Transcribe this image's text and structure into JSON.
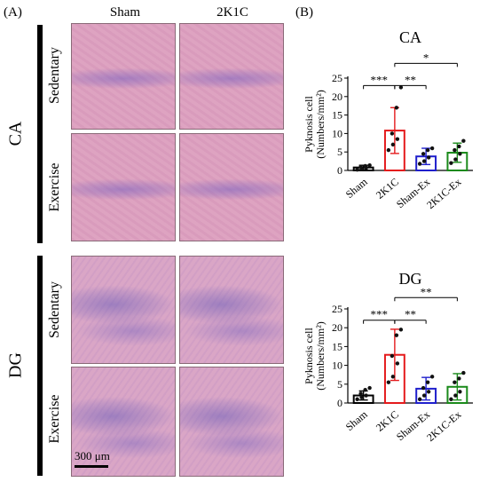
{
  "panel_a": {
    "label": "(A)",
    "columns": [
      "Sham",
      "2K1C"
    ],
    "regions": [
      "CA",
      "DG"
    ],
    "rows": [
      "Sedentary",
      "Exercise"
    ],
    "scale_bar": "300 μm"
  },
  "panel_b_label": "(B)",
  "chart_data": [
    {
      "type": "bar",
      "title": "CA",
      "ylabel": "Pyknosis cell (Numbers/mm²)",
      "ylabel_lines": [
        "Pyknosis cell",
        "(Numbers/mm²)"
      ],
      "categories": [
        "Sham",
        "2K1C",
        "Sham-Ex",
        "2K1C-Ex"
      ],
      "values": [
        0.8,
        10.8,
        3.8,
        4.8
      ],
      "errors": [
        0.6,
        6.2,
        2.2,
        2.6
      ],
      "colors": [
        "#000000",
        "#e41a1c",
        "#1f1fcc",
        "#1a8a1a"
      ],
      "points": [
        [
          0.2,
          0.4,
          0.8,
          1.0,
          1.2,
          1.4
        ],
        [
          5.5,
          7.0,
          8.5,
          10.0,
          17.0,
          22.5
        ],
        [
          1.8,
          2.5,
          3.5,
          4.5,
          5.5,
          6.0
        ],
        [
          2.0,
          3.0,
          4.5,
          5.5,
          6.5,
          8.0
        ]
      ],
      "ylim": [
        0,
        25
      ],
      "yticks": [
        0,
        5,
        10,
        15,
        20,
        25
      ],
      "significance": [
        {
          "from": 0,
          "to": 1,
          "label": "***",
          "y": 23
        },
        {
          "from": 1,
          "to": 2,
          "label": "**",
          "y": 23
        },
        {
          "from": 1,
          "to": 3,
          "label": "*",
          "y": 29
        }
      ]
    },
    {
      "type": "bar",
      "title": "DG",
      "ylabel": "Pyknosis cell (Numbers/mm²)",
      "ylabel_lines": [
        "Pyknosis cell",
        "(Numbers/mm²)"
      ],
      "categories": [
        "Sham",
        "2K1C",
        "Sham-Ex",
        "2K1C-Ex"
      ],
      "values": [
        2.0,
        12.8,
        3.8,
        4.3
      ],
      "errors": [
        1.2,
        6.8,
        3.0,
        3.5
      ],
      "colors": [
        "#000000",
        "#e41a1c",
        "#1f1fcc",
        "#1a8a1a"
      ],
      "points": [
        [
          1.0,
          1.5,
          2.0,
          2.5,
          3.5,
          4.0
        ],
        [
          5.5,
          7.0,
          10.5,
          12.5,
          18.0,
          19.5
        ],
        [
          1.0,
          2.0,
          3.0,
          4.0,
          5.5,
          7.0
        ],
        [
          1.0,
          2.0,
          3.0,
          5.5,
          6.5,
          8.0
        ]
      ],
      "ylim": [
        0,
        25
      ],
      "yticks": [
        0,
        5,
        10,
        15,
        20,
        25
      ],
      "significance": [
        {
          "from": 0,
          "to": 1,
          "label": "***",
          "y": 22
        },
        {
          "from": 1,
          "to": 2,
          "label": "**",
          "y": 22
        },
        {
          "from": 1,
          "to": 3,
          "label": "**",
          "y": 28
        }
      ]
    }
  ]
}
